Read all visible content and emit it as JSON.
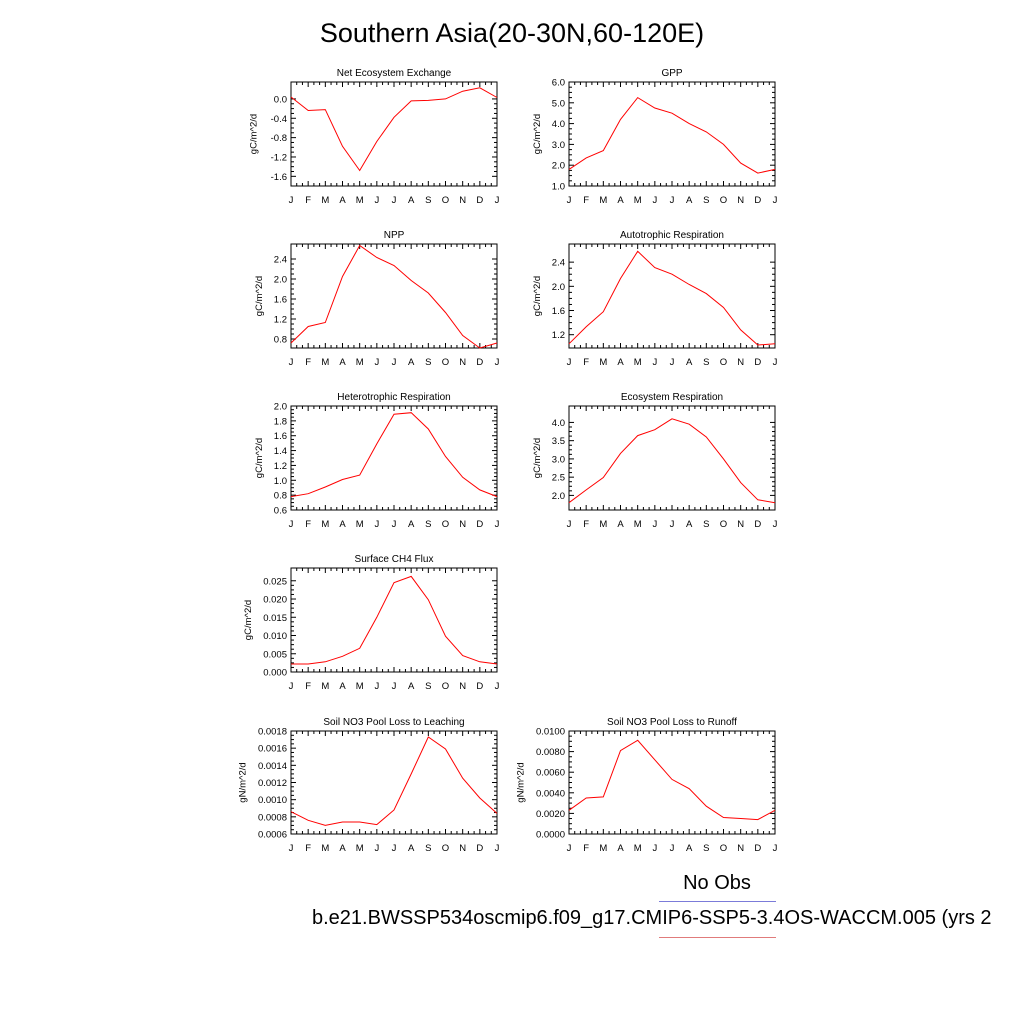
{
  "page": {
    "title": "Southern Asia(20-30N,60-120E)",
    "legend_obs": "No Obs",
    "legend_case": "b.e21.BWSSP534oscmip6.f09_g17.CMIP6-SSP5-3.4OS-WACCM.005 (yrs 2",
    "line_color": "#ff0000",
    "obs_color": "#7b7bd9"
  },
  "chart_data": [
    {
      "type": "line",
      "title": "Net Ecosystem Exchange",
      "ylabel": "gC/m^2/d",
      "categories": [
        "J",
        "F",
        "M",
        "A",
        "M",
        "J",
        "J",
        "A",
        "S",
        "O",
        "N",
        "D",
        "J"
      ],
      "values": [
        0.04,
        -0.24,
        -0.22,
        -0.98,
        -1.48,
        -0.88,
        -0.38,
        -0.04,
        -0.03,
        0.0,
        0.16,
        0.23,
        0.03
      ],
      "ylim": [
        -1.8,
        0.35
      ],
      "yticks": [
        -1.6,
        -1.2,
        -0.8,
        -0.4,
        0.0
      ],
      "ytick_labels": [
        "-1.6",
        "-1.2",
        "-0.8",
        "-0.4",
        "0.0"
      ],
      "series_name": ""
    },
    {
      "type": "line",
      "title": "GPP",
      "ylabel": "gC/m^2/d",
      "categories": [
        "J",
        "F",
        "M",
        "A",
        "M",
        "J",
        "J",
        "A",
        "S",
        "O",
        "N",
        "D",
        "J"
      ],
      "values": [
        1.8,
        2.35,
        2.7,
        4.2,
        5.25,
        4.75,
        4.5,
        4.0,
        3.6,
        3.0,
        2.1,
        1.62,
        1.8
      ],
      "ylim": [
        1.0,
        6.0
      ],
      "yticks": [
        1.0,
        2.0,
        3.0,
        4.0,
        5.0,
        6.0
      ],
      "ytick_labels": [
        "1.0",
        "2.0",
        "3.0",
        "4.0",
        "5.0",
        "6.0"
      ]
    },
    {
      "type": "line",
      "title": "NPP",
      "ylabel": "gC/m^2/d",
      "categories": [
        "J",
        "F",
        "M",
        "A",
        "M",
        "J",
        "J",
        "A",
        "S",
        "O",
        "N",
        "D",
        "J"
      ],
      "values": [
        0.72,
        1.05,
        1.13,
        2.05,
        2.67,
        2.43,
        2.27,
        1.97,
        1.72,
        1.33,
        0.87,
        0.62,
        0.72
      ],
      "ylim": [
        0.62,
        2.7
      ],
      "yticks": [
        0.8,
        1.2,
        1.6,
        2.0,
        2.4
      ],
      "ytick_labels": [
        "0.8",
        "1.2",
        "1.6",
        "2.0",
        "2.4"
      ]
    },
    {
      "type": "line",
      "title": "Autotrophic Respiration",
      "ylabel": "gC/m^2/d",
      "categories": [
        "J",
        "F",
        "M",
        "A",
        "M",
        "J",
        "J",
        "A",
        "S",
        "O",
        "N",
        "D",
        "J"
      ],
      "values": [
        1.05,
        1.33,
        1.58,
        2.13,
        2.58,
        2.31,
        2.2,
        2.03,
        1.88,
        1.65,
        1.28,
        1.03,
        1.05
      ],
      "ylim": [
        0.98,
        2.7
      ],
      "yticks": [
        1.2,
        1.6,
        2.0,
        2.4
      ],
      "ytick_labels": [
        "1.2",
        "1.6",
        "2.0",
        "2.4"
      ]
    },
    {
      "type": "line",
      "title": "Heterotrophic Respiration",
      "ylabel": "gC/m^2/d",
      "categories": [
        "J",
        "F",
        "M",
        "A",
        "M",
        "J",
        "J",
        "A",
        "S",
        "O",
        "N",
        "D",
        "J"
      ],
      "values": [
        0.78,
        0.82,
        0.91,
        1.01,
        1.07,
        1.49,
        1.89,
        1.91,
        1.69,
        1.32,
        1.04,
        0.87,
        0.78
      ],
      "ylim": [
        0.6,
        2.0
      ],
      "yticks": [
        0.6,
        0.8,
        1.0,
        1.2,
        1.4,
        1.6,
        1.8,
        2.0
      ],
      "ytick_labels": [
        "0.6",
        "0.8",
        "1.0",
        "1.2",
        "1.4",
        "1.6",
        "1.8",
        "2.0"
      ]
    },
    {
      "type": "line",
      "title": "Ecosystem Respiration",
      "ylabel": "gC/m^2/d",
      "categories": [
        "J",
        "F",
        "M",
        "A",
        "M",
        "J",
        "J",
        "A",
        "S",
        "O",
        "N",
        "D",
        "J"
      ],
      "values": [
        1.8,
        2.15,
        2.49,
        3.15,
        3.64,
        3.8,
        4.1,
        3.95,
        3.6,
        3.0,
        2.35,
        1.88,
        1.8
      ],
      "ylim": [
        1.6,
        4.45
      ],
      "yticks": [
        2.0,
        2.5,
        3.0,
        3.5,
        4.0
      ],
      "ytick_labels": [
        "2.0",
        "2.5",
        "3.0",
        "3.5",
        "4.0"
      ]
    },
    {
      "type": "line",
      "title": "Surface CH4 Flux",
      "ylabel": "gC/m^2/d",
      "categories": [
        "J",
        "F",
        "M",
        "A",
        "M",
        "J",
        "J",
        "A",
        "S",
        "O",
        "N",
        "D",
        "J"
      ],
      "values": [
        0.0022,
        0.0022,
        0.0028,
        0.0043,
        0.0065,
        0.015,
        0.0245,
        0.0262,
        0.0198,
        0.0098,
        0.0045,
        0.0028,
        0.0022
      ],
      "ylim": [
        0.0,
        0.0285
      ],
      "yticks": [
        0.0,
        0.005,
        0.01,
        0.015,
        0.02,
        0.025
      ],
      "ytick_labels": [
        "0.000",
        "0.005",
        "0.010",
        "0.015",
        "0.020",
        "0.025"
      ]
    },
    {
      "type": "line",
      "title": "Soil NO3 Pool Loss to Leaching",
      "ylabel": "gN/m^2/d",
      "categories": [
        "J",
        "F",
        "M",
        "A",
        "M",
        "J",
        "J",
        "A",
        "S",
        "O",
        "N",
        "D",
        "J"
      ],
      "values": [
        0.00086,
        0.00076,
        0.0007,
        0.00074,
        0.00074,
        0.00071,
        0.00088,
        0.0013,
        0.00173,
        0.00159,
        0.00125,
        0.00102,
        0.00084
      ],
      "ylim": [
        0.0006,
        0.0018
      ],
      "yticks": [
        0.0006,
        0.0008,
        0.001,
        0.0012,
        0.0014,
        0.0016,
        0.0018
      ],
      "ytick_labels": [
        "0.0006",
        "0.0008",
        "0.0010",
        "0.0012",
        "0.0014",
        "0.0016",
        "0.0018"
      ]
    },
    {
      "type": "line",
      "title": "Soil NO3 Pool Loss to Runoff",
      "ylabel": "gN/m^2/d",
      "categories": [
        "J",
        "F",
        "M",
        "A",
        "M",
        "J",
        "J",
        "A",
        "S",
        "O",
        "N",
        "D",
        "J"
      ],
      "values": [
        0.0023,
        0.0035,
        0.0036,
        0.0081,
        0.0091,
        0.0072,
        0.0053,
        0.0044,
        0.0027,
        0.0016,
        0.0015,
        0.0014,
        0.0023
      ],
      "ylim": [
        0.0,
        0.01
      ],
      "yticks": [
        0.0,
        0.002,
        0.004,
        0.006,
        0.008,
        0.01
      ],
      "ytick_labels": [
        "0.0000",
        "0.0020",
        "0.0040",
        "0.0060",
        "0.0080",
        "0.0100"
      ]
    }
  ]
}
